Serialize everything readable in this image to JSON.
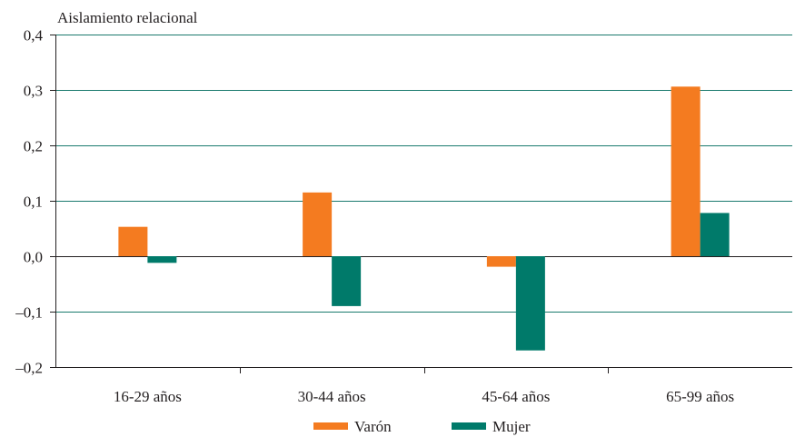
{
  "chart_data": {
    "type": "bar",
    "title": "",
    "ylabel": "Aislamiento relacional",
    "xlabel": "",
    "categories": [
      "16-29 años",
      "30-44 años",
      "45-64 años",
      "65-99 años"
    ],
    "series": [
      {
        "name": "Varón",
        "color": "#f47b20",
        "values": [
          0.053,
          0.115,
          -0.019,
          0.306
        ]
      },
      {
        "name": "Mujer",
        "color": "#007a6a",
        "values": [
          -0.012,
          -0.09,
          -0.17,
          0.078
        ]
      }
    ],
    "ylim": [
      -0.2,
      0.4
    ],
    "yticks": [
      0.4,
      0.3,
      0.2,
      0.1,
      0.0,
      -0.1,
      -0.2
    ],
    "ytick_labels": [
      "0,4",
      "0,3",
      "0,2",
      "0,1",
      "0,0",
      "–0,1",
      "–0,2"
    ],
    "grid": true,
    "grid_color": "#1a7a6e",
    "legend_position": "bottom-center"
  }
}
